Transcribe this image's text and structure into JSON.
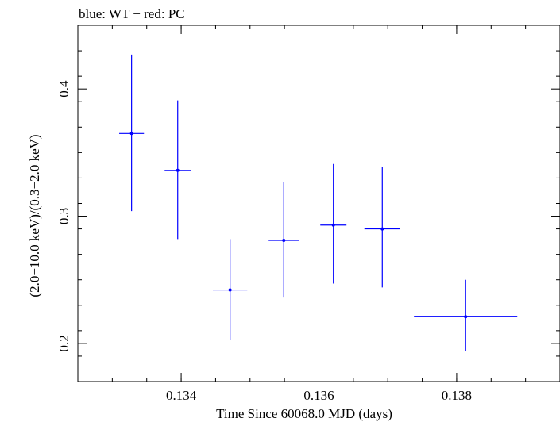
{
  "chart_data": {
    "type": "scatter",
    "title": "blue: WT − red: PC",
    "xlabel": "Time Since 60068.0 MJD (days)",
    "ylabel": "(2.0−10.0 keV)/(0.3−2.0 keV)",
    "xlim": [
      0.1325,
      0.1395
    ],
    "ylim": [
      0.17,
      0.45
    ],
    "x_major_ticks": [
      0.134,
      0.136,
      0.138
    ],
    "x_tick_labels": [
      "0.134",
      "0.136",
      "0.138"
    ],
    "x_minor_step": 0.0005,
    "y_major_ticks": [
      0.2,
      0.3,
      0.4
    ],
    "y_tick_labels": [
      "0.2",
      "0.3",
      "0.4"
    ],
    "y_minor_step": 0.02,
    "grid": false,
    "series": [
      {
        "name": "WT",
        "color": "#0000ff",
        "points": [
          {
            "x": 0.13328,
            "xerr": 0.00018,
            "y": 0.365,
            "ylo": 0.304,
            "yhi": 0.427
          },
          {
            "x": 0.13395,
            "xerr": 0.00019,
            "y": 0.336,
            "ylo": 0.282,
            "yhi": 0.391
          },
          {
            "x": 0.13471,
            "xerr": 0.00025,
            "y": 0.242,
            "ylo": 0.203,
            "yhi": 0.282
          },
          {
            "x": 0.13549,
            "xerr": 0.00022,
            "y": 0.281,
            "ylo": 0.236,
            "yhi": 0.327
          },
          {
            "x": 0.13621,
            "xerr": 0.00019,
            "y": 0.293,
            "ylo": 0.247,
            "yhi": 0.341
          },
          {
            "x": 0.13692,
            "xerr": 0.00026,
            "y": 0.29,
            "ylo": 0.244,
            "yhi": 0.339
          },
          {
            "x": 0.13813,
            "xerr": 0.00075,
            "y": 0.221,
            "ylo": 0.194,
            "yhi": 0.25
          }
        ]
      }
    ]
  }
}
